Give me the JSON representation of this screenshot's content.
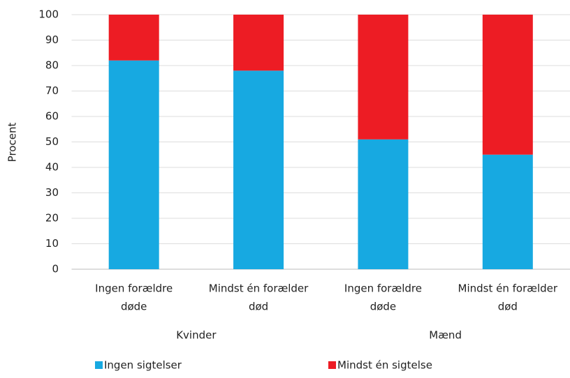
{
  "chart_data": {
    "type": "stacked_bar",
    "categories": [
      [
        "Ingen forældre",
        "døde"
      ],
      [
        "Mindst én forælder",
        "død"
      ],
      [
        "Ingen forældre",
        "døde"
      ],
      [
        "Mindst én forælder",
        "død"
      ]
    ],
    "groups": [
      "Kvinder",
      "Mænd"
    ],
    "series": [
      {
        "name": "Ingen sigtelser",
        "color": "#17a9e1",
        "values": [
          82,
          78,
          51,
          45
        ]
      },
      {
        "name": "Mindst én sigtelse",
        "color": "#ed1c24",
        "values": [
          18,
          22,
          49,
          55
        ]
      }
    ],
    "ylabel": "Procent",
    "ylim": [
      0,
      100
    ],
    "yticks": [
      0,
      10,
      20,
      30,
      40,
      50,
      60,
      70,
      80,
      90,
      100
    ],
    "grid": true,
    "legend": "bottom"
  }
}
